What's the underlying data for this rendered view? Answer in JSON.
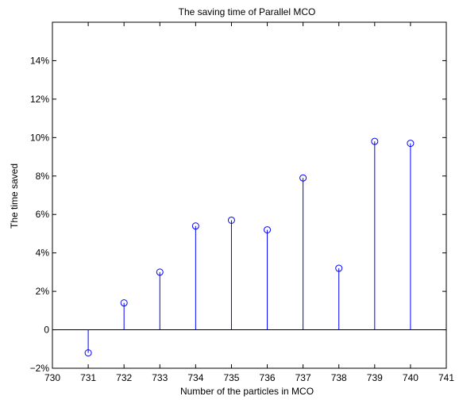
{
  "chart_data": {
    "type": "stem",
    "title": "The saving time of Parallel MCO",
    "xlabel": "Number of the particles in MCO",
    "ylabel": "The time saved",
    "xlim": [
      730,
      741
    ],
    "ylim": [
      -2,
      16
    ],
    "x_ticks": [
      "730",
      "731",
      "732",
      "733",
      "734",
      "735",
      "736",
      "737",
      "738",
      "739",
      "740",
      "741"
    ],
    "y_ticks": [
      "−2%",
      "0",
      "2%",
      "4%",
      "6%",
      "8%",
      "10%",
      "12%",
      "14%"
    ],
    "y_tick_values": [
      -2,
      0,
      2,
      4,
      6,
      8,
      10,
      12,
      14
    ],
    "grid": false,
    "series": [
      {
        "color": "#0000ff",
        "marker": "circle",
        "x": [
          731,
          732,
          733,
          734,
          735,
          736,
          737,
          738,
          739,
          740
        ],
        "y": [
          -1.2,
          1.4,
          3.0,
          5.4,
          5.7,
          5.2,
          7.9,
          3.2,
          9.8,
          9.7
        ]
      }
    ]
  }
}
